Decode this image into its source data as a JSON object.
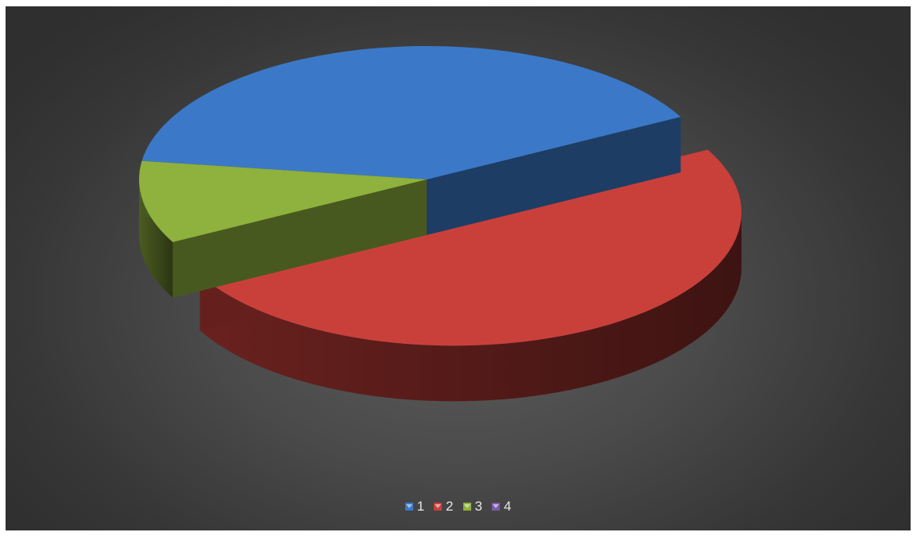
{
  "chart_data": {
    "type": "pie",
    "style": "3d-exploded",
    "title": "",
    "categories": [
      "1",
      "2",
      "3",
      "4"
    ],
    "values": [
      40,
      50,
      10,
      0
    ],
    "colors": [
      "#3b79c8",
      "#c9403b",
      "#8fb13d",
      "#7b5ba8"
    ],
    "legend_position": "bottom"
  },
  "legend": {
    "items": [
      {
        "label": "1",
        "color": "#3b79c8"
      },
      {
        "label": "2",
        "color": "#c9403b"
      },
      {
        "label": "3",
        "color": "#8fb13d"
      },
      {
        "label": "4",
        "color": "#7b5ba8"
      }
    ]
  }
}
